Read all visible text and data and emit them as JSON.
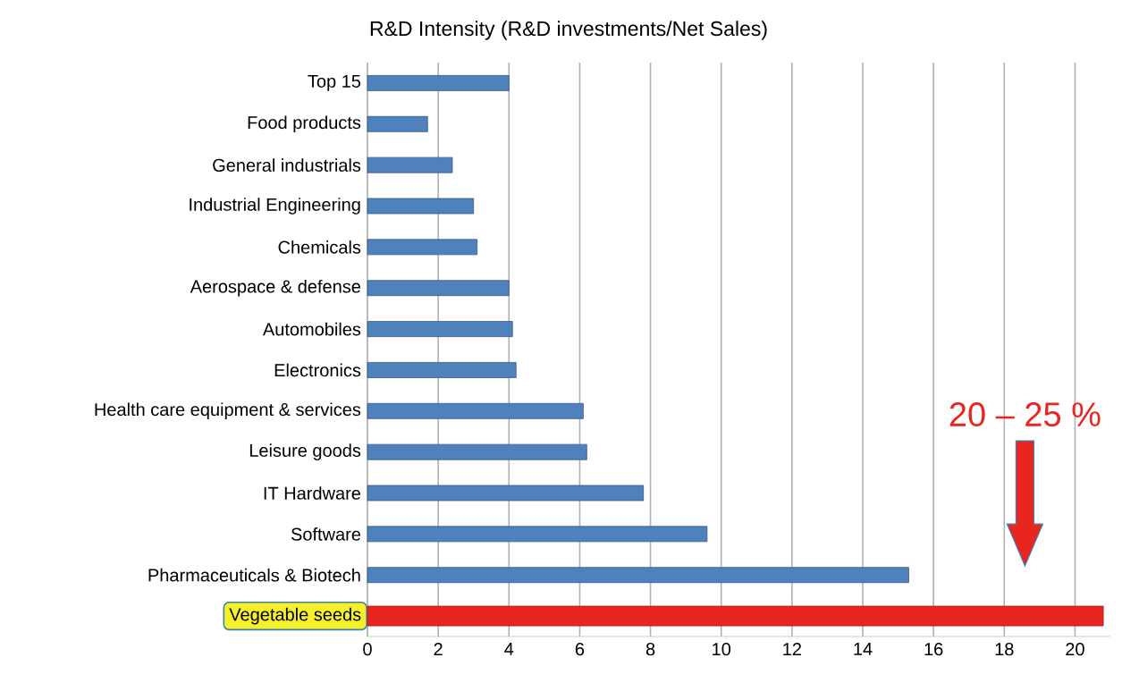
{
  "chart_data": {
    "type": "bar",
    "orientation": "horizontal",
    "title": "R&D Intensity (R&D investments/Net Sales)",
    "categories": [
      "Top 15",
      "Food products",
      "General industrials",
      "Industrial Engineering",
      "Chemicals",
      "Aerospace & defense",
      "Automobiles",
      "Electronics",
      "Health care equipment & services",
      "Leisure goods",
      "IT Hardware",
      "Software",
      "Pharmaceuticals & Biotech",
      "Vegetable seeds"
    ],
    "values": [
      4.0,
      1.7,
      2.4,
      3.0,
      3.1,
      4.0,
      4.1,
      4.2,
      6.1,
      6.2,
      7.8,
      9.6,
      15.3,
      20.8
    ],
    "colors": [
      "#4f81bd",
      "#4f81bd",
      "#4f81bd",
      "#4f81bd",
      "#4f81bd",
      "#4f81bd",
      "#4f81bd",
      "#4f81bd",
      "#4f81bd",
      "#4f81bd",
      "#4f81bd",
      "#4f81bd",
      "#4f81bd",
      "#e8251f"
    ],
    "xlim": [
      0,
      21
    ],
    "xticks": [
      0,
      2,
      4,
      6,
      8,
      10,
      12,
      14,
      16,
      18,
      20
    ],
    "grid": "x",
    "annotations": [
      "20 – 25 %"
    ]
  }
}
